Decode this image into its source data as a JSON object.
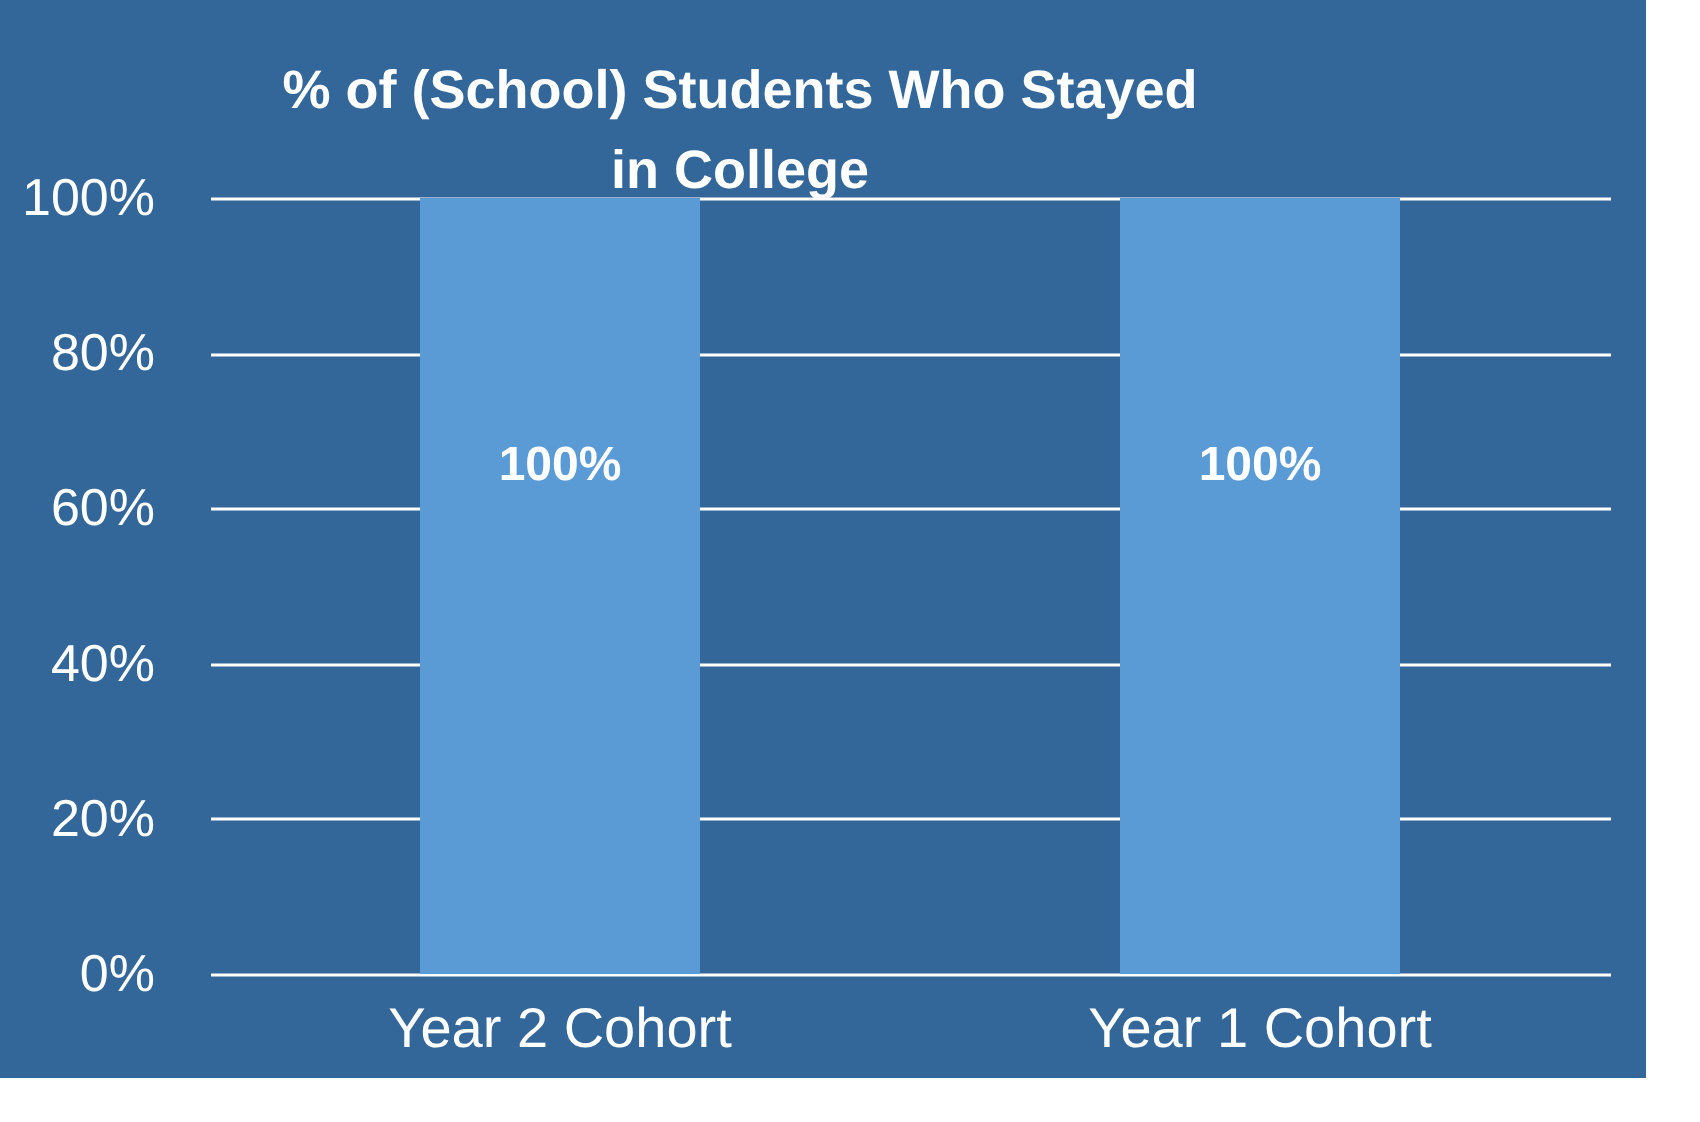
{
  "chart_data": {
    "type": "bar",
    "title": "% of (School) Students Who Stayed in College",
    "categories": [
      "Year 2 Cohort",
      "Year 1 Cohort"
    ],
    "values": [
      100,
      100
    ],
    "color": "#5b9bd5",
    "value_labels": [
      "100%",
      "100%"
    ],
    "ylim": [
      0,
      100
    ],
    "yticks": [
      {
        "value": 0,
        "label": "0%"
      },
      {
        "value": 20,
        "label": "20%"
      },
      {
        "value": 40,
        "label": "40%"
      },
      {
        "value": 60,
        "label": "60%"
      },
      {
        "value": 80,
        "label": "80%"
      },
      {
        "value": 100,
        "label": "100%"
      }
    ],
    "grid": "y"
  }
}
